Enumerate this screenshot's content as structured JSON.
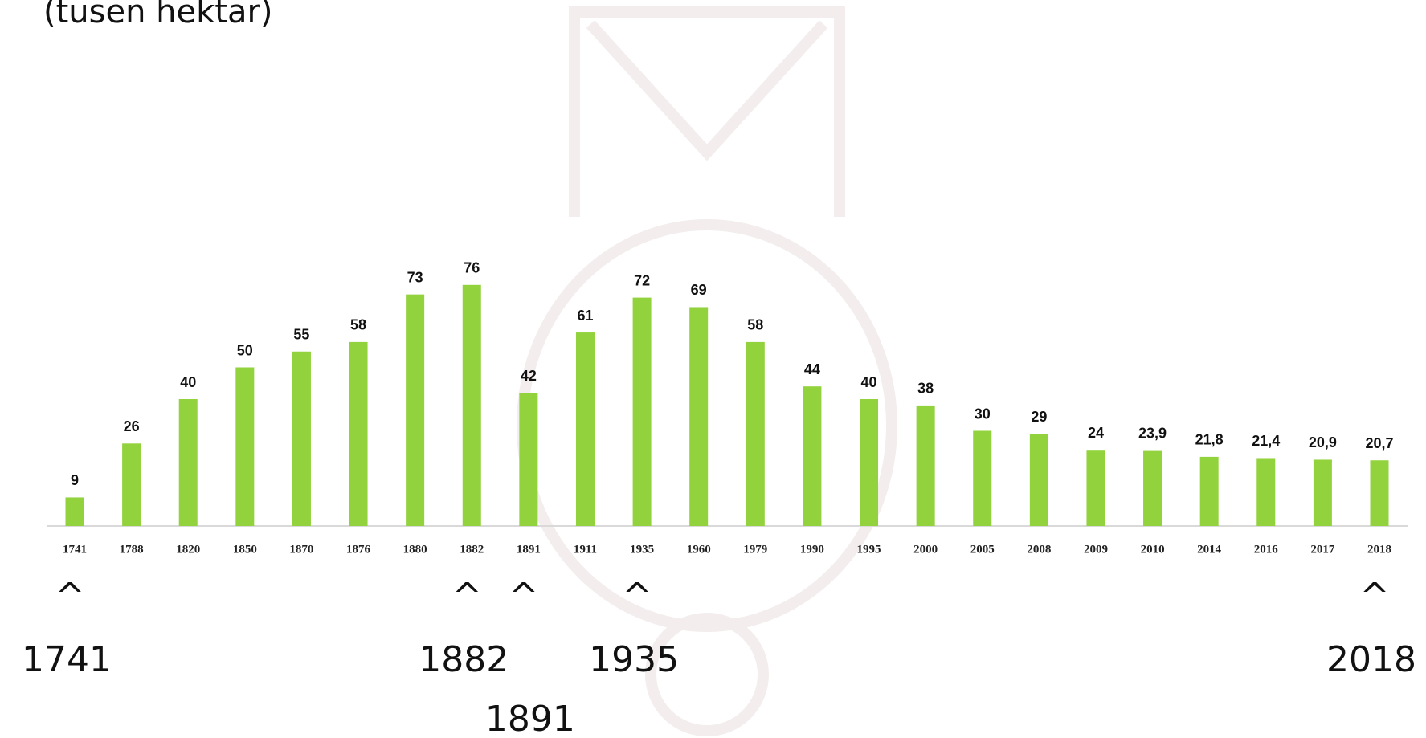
{
  "chart_data": {
    "type": "bar",
    "title": "(tusen hektar)",
    "categories": [
      "1741",
      "1788",
      "1820",
      "1850",
      "1870",
      "1876",
      "1880",
      "1882",
      "1891",
      "1911",
      "1935",
      "1960",
      "1979",
      "1990",
      "1995",
      "2000",
      "2005",
      "2008",
      "2009",
      "2010",
      "2014",
      "2016",
      "2017",
      "2018"
    ],
    "values": [
      9,
      26,
      40,
      50,
      55,
      58,
      73,
      76,
      42,
      61,
      72,
      69,
      58,
      44,
      40,
      38,
      30,
      29,
      24,
      23.9,
      21.8,
      21.4,
      20.9,
      20.7
    ],
    "value_labels": [
      "9",
      "26",
      "40",
      "50",
      "55",
      "58",
      "73",
      "76",
      "42",
      "61",
      "72",
      "69",
      "58",
      "44",
      "40",
      "38",
      "30",
      "29",
      "24",
      "23,9",
      "21,8",
      "21,4",
      "20,9",
      "20,7"
    ],
    "color": "#92d23c",
    "ylim": [
      0,
      100
    ],
    "annotations": [
      {
        "marker": "^",
        "label": "1741"
      },
      {
        "marker": "^",
        "label": "1882"
      },
      {
        "marker": "^",
        "label": "1891"
      },
      {
        "marker": "^",
        "label": "1935"
      },
      {
        "marker": "^",
        "label": "2018"
      }
    ]
  }
}
